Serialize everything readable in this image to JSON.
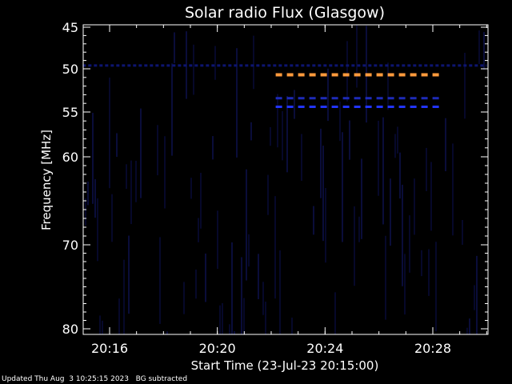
{
  "chart_data": {
    "type": "heatmap",
    "title": "Solar radio Flux (Glasgow)",
    "xlabel": "Start Time (23-Jul-23 20:15:00)",
    "ylabel": "Frequency [MHz]",
    "xlim_minutes": [
      20.25,
      20.5
    ],
    "x_ticks": [
      "20:16",
      "20:20",
      "20:24",
      "20:28"
    ],
    "y_ticks": [
      45,
      50,
      55,
      60,
      70,
      80
    ],
    "ylim": [
      45,
      80
    ],
    "y_scale": "log",
    "background": "#000000",
    "features": [
      {
        "name": "",
        "start": "20:22:10",
        "end": "20:28:15",
        "frequency": 50.7,
        "color": "#ff9a3c"
      },
      {
        "name": "",
        "start": "20:22:10",
        "end": "20:28:15",
        "frequency": 53.4,
        "color": "#1d2bb8"
      },
      {
        "name": "",
        "start": "20:22:10",
        "end": "20:28:15",
        "frequency": 54.4,
        "color": "#2235ff"
      },
      {
        "name": "",
        "start": "20:15:00",
        "end": "20:30:00",
        "frequency": 49.6,
        "color": "#0d1570"
      }
    ]
  },
  "footer": {
    "updated": "Updated Thu Aug  3 10:25:15 2023",
    "note": "BG subtracted"
  }
}
